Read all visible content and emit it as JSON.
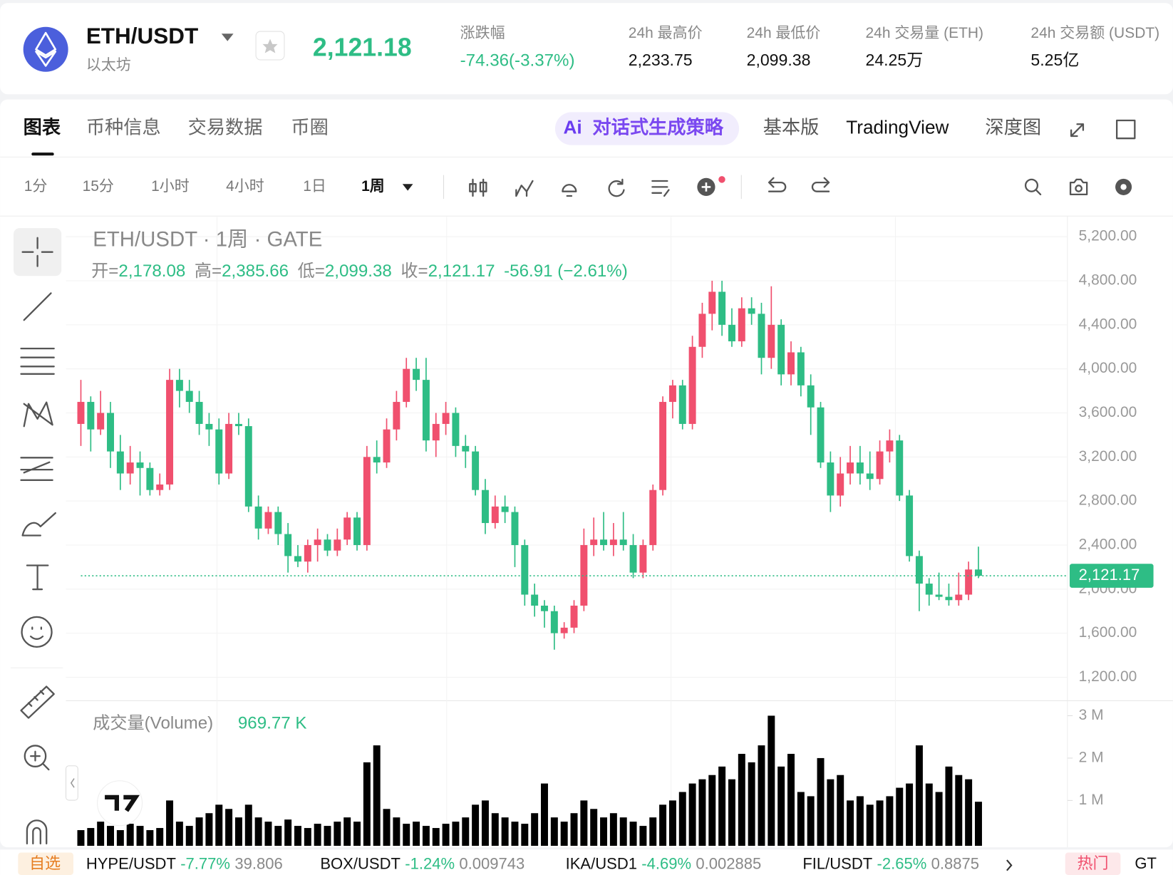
{
  "header": {
    "pair": "ETH/USDT",
    "name": "以太坊",
    "price": "2,121.18",
    "change_label": "涨跌幅",
    "change": "-74.36(-3.37%)",
    "stats": [
      {
        "label": "24h 最高价",
        "value": "2,233.75"
      },
      {
        "label": "24h 最低价",
        "value": "2,099.38"
      },
      {
        "label": "24h 交易量 (ETH)",
        "value": "24.25万"
      },
      {
        "label": "24h 交易额 (USDT)",
        "value": "5.25亿"
      }
    ]
  },
  "tabs": {
    "left": [
      "图表",
      "币种信息",
      "交易数据",
      "币圈"
    ],
    "ai_icon": "Ai",
    "ai": "对话式生成策略",
    "right": [
      "基本版",
      "TradingView",
      "深度图"
    ]
  },
  "intervals": [
    "1分",
    "15分",
    "1小时",
    "4小时",
    "1日",
    "1周"
  ],
  "chart_data": {
    "type": "candlestick",
    "title": "ETH/USDT · 1周 · GATE",
    "legend": [
      {
        "key": "开=",
        "value": "2,178.08"
      },
      {
        "key": "高=",
        "value": "2,385.66"
      },
      {
        "key": "低=",
        "value": "2,099.38"
      },
      {
        "key": "收=",
        "value": "2,121.17"
      }
    ],
    "change": "-56.91 (−2.61%)",
    "up_color": "#f0506e",
    "down_color": "#2ebd85",
    "up_volume_color": "#f5a5b4",
    "down_volume_color": "#9fe0c5",
    "ohlc": [
      [
        3500,
        3900,
        3300,
        3700
      ],
      [
        3700,
        3750,
        3250,
        3450
      ],
      [
        3450,
        3800,
        3400,
        3600
      ],
      [
        3600,
        3700,
        3100,
        3250
      ],
      [
        3250,
        3400,
        2900,
        3050
      ],
      [
        3050,
        3300,
        2950,
        3150
      ],
      [
        3150,
        3250,
        2850,
        3100
      ],
      [
        3100,
        3150,
        2850,
        2900
      ],
      [
        2900,
        3050,
        2850,
        2950
      ],
      [
        2950,
        4000,
        2900,
        3900
      ],
      [
        3900,
        4000,
        3650,
        3800
      ],
      [
        3800,
        3900,
        3600,
        3700
      ],
      [
        3700,
        3800,
        3400,
        3500
      ],
      [
        3500,
        3600,
        3300,
        3450
      ],
      [
        3450,
        3550,
        2950,
        3050
      ],
      [
        3050,
        3600,
        3000,
        3500
      ],
      [
        3500,
        3600,
        3400,
        3480
      ],
      [
        3480,
        3550,
        2700,
        2750
      ],
      [
        2750,
        2850,
        2450,
        2550
      ],
      [
        2550,
        2750,
        2500,
        2700
      ],
      [
        2700,
        2750,
        2400,
        2500
      ],
      [
        2500,
        2600,
        2150,
        2300
      ],
      [
        2300,
        2400,
        2200,
        2250
      ],
      [
        2250,
        2450,
        2150,
        2400
      ],
      [
        2400,
        2550,
        2250,
        2450
      ],
      [
        2450,
        2500,
        2300,
        2350
      ],
      [
        2350,
        2550,
        2300,
        2450
      ],
      [
        2450,
        2700,
        2400,
        2650
      ],
      [
        2650,
        2700,
        2350,
        2400
      ],
      [
        2400,
        3300,
        2350,
        3200
      ],
      [
        3200,
        3350,
        3050,
        3150
      ],
      [
        3150,
        3550,
        3100,
        3450
      ],
      [
        3450,
        3800,
        3350,
        3700
      ],
      [
        3700,
        4100,
        3650,
        4000
      ],
      [
        4000,
        4100,
        3800,
        3900
      ],
      [
        3900,
        4100,
        3250,
        3350
      ],
      [
        3350,
        3600,
        3200,
        3500
      ],
      [
        3500,
        3700,
        3400,
        3600
      ],
      [
        3600,
        3650,
        3200,
        3300
      ],
      [
        3300,
        3400,
        3100,
        3250
      ],
      [
        3250,
        3300,
        2850,
        2900
      ],
      [
        2900,
        3000,
        2500,
        2600
      ],
      [
        2600,
        2850,
        2550,
        2750
      ],
      [
        2750,
        2850,
        2600,
        2700
      ],
      [
        2700,
        2750,
        2200,
        2400
      ],
      [
        2400,
        2450,
        1850,
        1950
      ],
      [
        1950,
        2050,
        1750,
        1850
      ],
      [
        1850,
        1900,
        1650,
        1800
      ],
      [
        1800,
        1850,
        1450,
        1600
      ],
      [
        1600,
        1700,
        1550,
        1650
      ],
      [
        1650,
        1900,
        1600,
        1850
      ],
      [
        1850,
        2550,
        1800,
        2400
      ],
      [
        2400,
        2650,
        2300,
        2450
      ],
      [
        2450,
        2700,
        2350,
        2400
      ],
      [
        2400,
        2600,
        2300,
        2450
      ],
      [
        2450,
        2700,
        2350,
        2400
      ],
      [
        2400,
        2500,
        2100,
        2150
      ],
      [
        2150,
        2450,
        2100,
        2400
      ],
      [
        2400,
        2950,
        2350,
        2900
      ],
      [
        2900,
        3750,
        2850,
        3700
      ],
      [
        3700,
        3900,
        3550,
        3850
      ],
      [
        3850,
        3900,
        3450,
        3500
      ],
      [
        3500,
        4300,
        3450,
        4200
      ],
      [
        4200,
        4600,
        4100,
        4500
      ],
      [
        4500,
        4800,
        4350,
        4700
      ],
      [
        4700,
        4800,
        4300,
        4400
      ],
      [
        4400,
        4550,
        4200,
        4250
      ],
      [
        4250,
        4650,
        4200,
        4550
      ],
      [
        4550,
        4650,
        4400,
        4500
      ],
      [
        4500,
        4600,
        3950,
        4100
      ],
      [
        4100,
        4750,
        4000,
        4400
      ],
      [
        4400,
        4450,
        3850,
        3950
      ],
      [
        3950,
        4250,
        3850,
        4150
      ],
      [
        4150,
        4200,
        3750,
        3850
      ],
      [
        3850,
        3950,
        3400,
        3650
      ],
      [
        3650,
        3700,
        3100,
        3150
      ],
      [
        3150,
        3250,
        2700,
        2850
      ],
      [
        2850,
        3200,
        2750,
        3050
      ],
      [
        3050,
        3300,
        2950,
        3150
      ],
      [
        3150,
        3300,
        2950,
        3050
      ],
      [
        3050,
        3250,
        2900,
        3000
      ],
      [
        3000,
        3350,
        2950,
        3250
      ],
      [
        3250,
        3450,
        3150,
        3350
      ],
      [
        3350,
        3400,
        2800,
        2850
      ],
      [
        2850,
        2900,
        2250,
        2300
      ],
      [
        2300,
        2350,
        1800,
        2050
      ],
      [
        2050,
        2100,
        1850,
        1950
      ],
      [
        1950,
        2150,
        1900,
        1930
      ],
      [
        1930,
        2050,
        1850,
        1900
      ],
      [
        1900,
        2150,
        1850,
        1950
      ],
      [
        1950,
        2250,
        1900,
        2178.08
      ],
      [
        2178.08,
        2385.66,
        2099.38,
        2121.17
      ]
    ],
    "ylim": [
      1000,
      5380
    ],
    "yticks": [
      {
        "value": 1200,
        "label": "1,200.00"
      },
      {
        "value": 1600,
        "label": "1,600.00"
      },
      {
        "value": 2000,
        "label": "2,000.00"
      },
      {
        "value": 2400,
        "label": "2,400.00"
      },
      {
        "value": 2800,
        "label": "2,800.00"
      },
      {
        "value": 3200,
        "label": "3,200.00"
      },
      {
        "value": 3600,
        "label": "3,600.00"
      },
      {
        "value": 4000,
        "label": "4,000.00"
      },
      {
        "value": 4400,
        "label": "4,400.00"
      },
      {
        "value": 4800,
        "label": "4,800.00"
      },
      {
        "value": 5200,
        "label": "5,200.00"
      }
    ],
    "current_price": {
      "value": 2121.17,
      "label": "2,121.17"
    },
    "volume": {
      "name": "成交量(Volume)",
      "value_label": "969.77 K",
      "ylim": [
        0,
        3300
      ],
      "yticks": [
        {
          "value": 1000,
          "label": "1 M"
        },
        {
          "value": 2000,
          "label": "2 M"
        },
        {
          "value": 3000,
          "label": "3 M"
        }
      ],
      "values": [
        300,
        350,
        500,
        400,
        300,
        450,
        400,
        300,
        350,
        1000,
        500,
        400,
        600,
        700,
        900,
        800,
        600,
        900,
        600,
        500,
        400,
        550,
        400,
        350,
        450,
        400,
        500,
        600,
        500,
        1900,
        2300,
        800,
        600,
        450,
        500,
        400,
        350,
        450,
        500,
        600,
        900,
        1000,
        700,
        600,
        500,
        450,
        700,
        1400,
        600,
        500,
        700,
        1000,
        800,
        600,
        700,
        600,
        500,
        400,
        600,
        900,
        1000,
        1200,
        1400,
        1500,
        1600,
        1800,
        1500,
        2100,
        1900,
        2300,
        3000,
        1800,
        2100,
        1200,
        1100,
        2000,
        1500,
        1600,
        1000,
        1100,
        900,
        1000,
        1100,
        1300,
        1400,
        2300,
        1400,
        1200,
        1800,
        1600,
        1500,
        969.77
      ]
    }
  },
  "ticker": {
    "watch": "自选",
    "items": [
      {
        "pair": "HYPE/USDT",
        "change": "-7.77%",
        "price": "39.806"
      },
      {
        "pair": "BOX/USDT",
        "change": "-1.24%",
        "price": "0.009743"
      },
      {
        "pair": "IKA/USD1",
        "change": "-4.69%",
        "price": "0.002885"
      },
      {
        "pair": "FIL/USDT",
        "change": "-2.65%",
        "price": "0.8875"
      }
    ],
    "hot": "热门",
    "next": "GT"
  }
}
